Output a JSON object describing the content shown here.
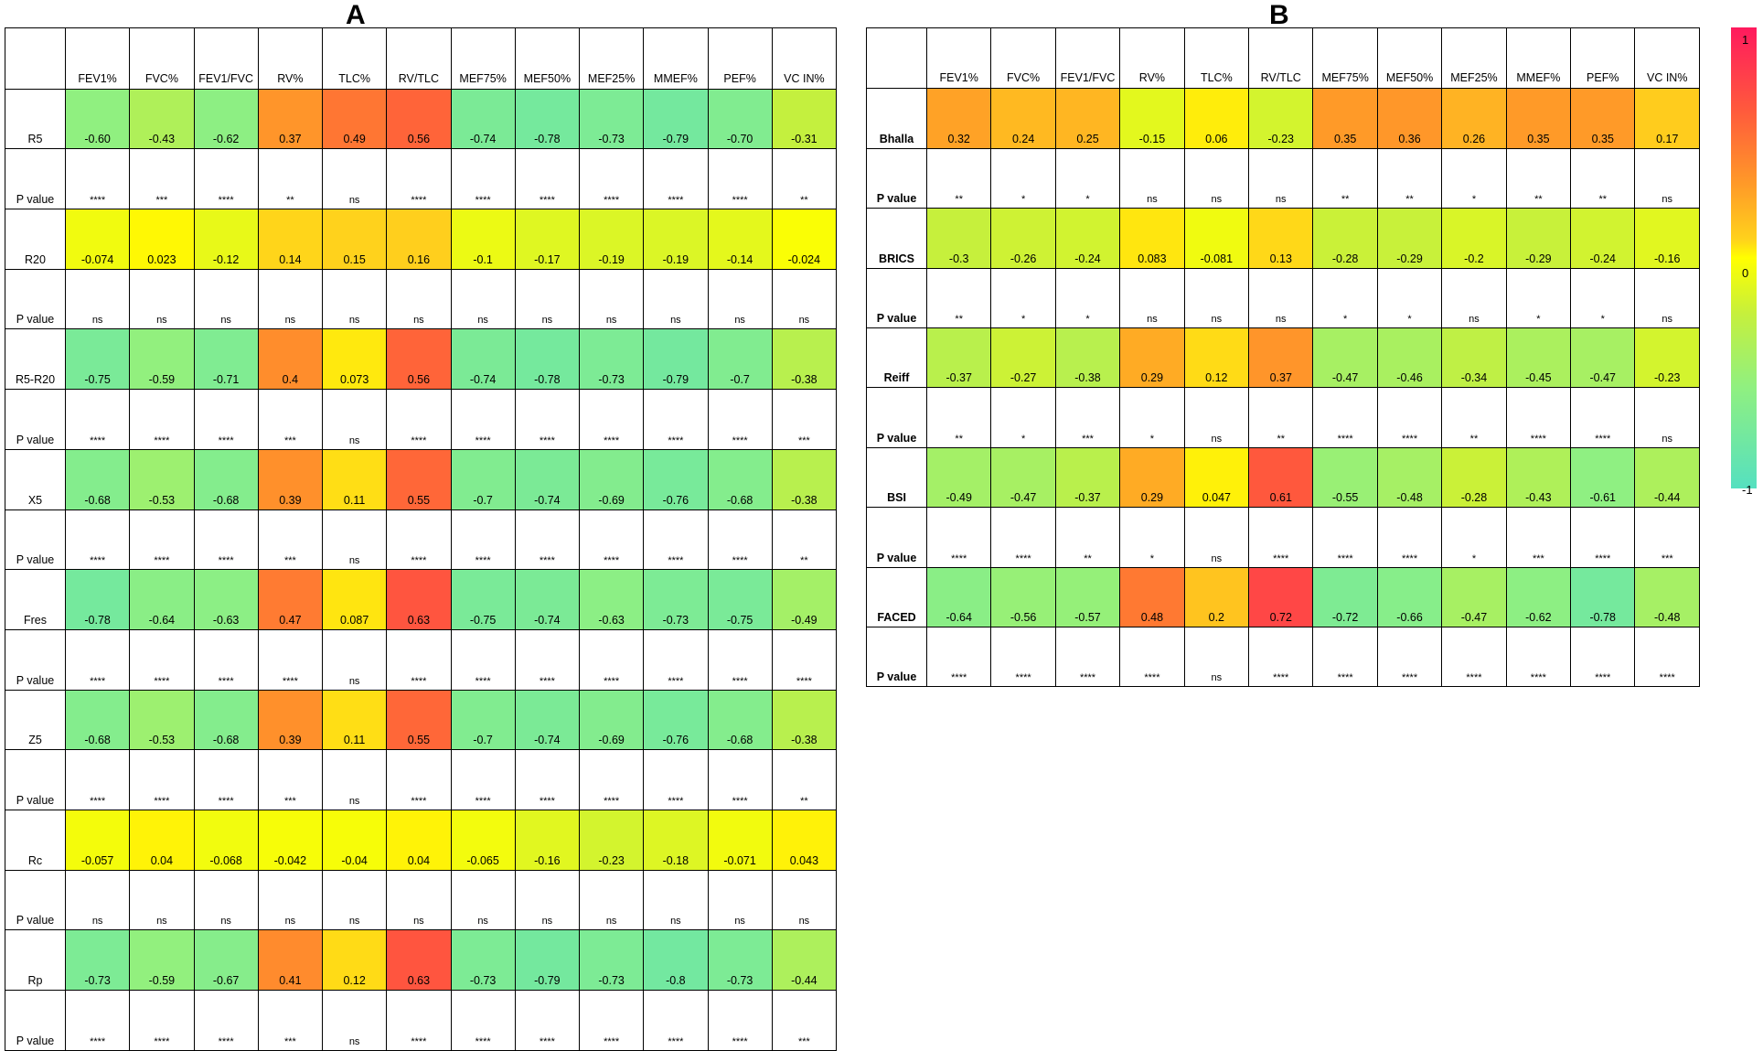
{
  "chart_data": [
    {
      "type": "heatmap",
      "panel": "A",
      "columns": [
        "FEV1%",
        "FVC%",
        "FEV1/FVC",
        "RV%",
        "TLC%",
        "RV/TLC",
        "MEF75%",
        "MEF50%",
        "MEF25%",
        "MMEF%",
        "PEF%",
        "VC IN%"
      ],
      "p_label": "P value",
      "rows": [
        {
          "label": "R5",
          "values": [
            -0.6,
            -0.43,
            -0.62,
            0.37,
            0.49,
            0.56,
            -0.74,
            -0.78,
            -0.73,
            -0.79,
            -0.7,
            -0.31
          ],
          "display": [
            "-0.60",
            "-0.43",
            "-0.62",
            "0.37",
            "0.49",
            "0.56",
            "-0.74",
            "-0.78",
            "-0.73",
            "-0.79",
            "-0.70",
            "-0.31"
          ],
          "p": [
            "****",
            "***",
            "****",
            "**",
            "ns",
            "****",
            "****",
            "****",
            "****",
            "****",
            "****",
            "**"
          ]
        },
        {
          "label": "R20",
          "values": [
            -0.074,
            0.023,
            -0.12,
            0.14,
            0.15,
            0.16,
            -0.1,
            -0.17,
            -0.19,
            -0.19,
            -0.14,
            -0.024
          ],
          "display": [
            "-0.074",
            "0.023",
            "-0.12",
            "0.14",
            "0.15",
            "0.16",
            "-0.1",
            "-0.17",
            "-0.19",
            "-0.19",
            "-0.14",
            "-0.024"
          ],
          "p": [
            "ns",
            "ns",
            "ns",
            "ns",
            "ns",
            "ns",
            "ns",
            "ns",
            "ns",
            "ns",
            "ns",
            "ns"
          ]
        },
        {
          "label": "R5-R20",
          "values": [
            -0.75,
            -0.59,
            -0.71,
            0.4,
            0.073,
            0.56,
            -0.74,
            -0.78,
            -0.73,
            -0.79,
            -0.7,
            -0.38
          ],
          "display": [
            "-0.75",
            "-0.59",
            "-0.71",
            "0.4",
            "0.073",
            "0.56",
            "-0.74",
            "-0.78",
            "-0.73",
            "-0.79",
            "-0.7",
            "-0.38"
          ],
          "p": [
            "****",
            "****",
            "****",
            "***",
            "ns",
            "****",
            "****",
            "****",
            "****",
            "****",
            "****",
            "***"
          ]
        },
        {
          "label": "X5",
          "values": [
            -0.68,
            -0.53,
            -0.68,
            0.39,
            0.11,
            0.55,
            -0.7,
            -0.74,
            -0.69,
            -0.76,
            -0.68,
            -0.38
          ],
          "display": [
            "-0.68",
            "-0.53",
            "-0.68",
            "0.39",
            "0.11",
            "0.55",
            "-0.7",
            "-0.74",
            "-0.69",
            "-0.76",
            "-0.68",
            "-0.38"
          ],
          "p": [
            "****",
            "****",
            "****",
            "***",
            "ns",
            "****",
            "****",
            "****",
            "****",
            "****",
            "****",
            "**"
          ]
        },
        {
          "label": "Fres",
          "values": [
            -0.78,
            -0.64,
            -0.63,
            0.47,
            0.087,
            0.63,
            -0.75,
            -0.74,
            -0.63,
            -0.73,
            -0.75,
            -0.49
          ],
          "display": [
            "-0.78",
            "-0.64",
            "-0.63",
            "0.47",
            "0.087",
            "0.63",
            "-0.75",
            "-0.74",
            "-0.63",
            "-0.73",
            "-0.75",
            "-0.49"
          ],
          "p": [
            "****",
            "****",
            "****",
            "****",
            "ns",
            "****",
            "****",
            "****",
            "****",
            "****",
            "****",
            "****"
          ]
        },
        {
          "label": "Z5",
          "values": [
            -0.68,
            -0.53,
            -0.68,
            0.39,
            0.11,
            0.55,
            -0.7,
            -0.74,
            -0.69,
            -0.76,
            -0.68,
            -0.38
          ],
          "display": [
            "-0.68",
            "-0.53",
            "-0.68",
            "0.39",
            "0.11",
            "0.55",
            "-0.7",
            "-0.74",
            "-0.69",
            "-0.76",
            "-0.68",
            "-0.38"
          ],
          "p": [
            "****",
            "****",
            "****",
            "***",
            "ns",
            "****",
            "****",
            "****",
            "****",
            "****",
            "****",
            "**"
          ]
        },
        {
          "label": "Rc",
          "values": [
            -0.057,
            0.04,
            -0.068,
            -0.042,
            -0.04,
            0.04,
            -0.065,
            -0.16,
            -0.23,
            -0.18,
            -0.071,
            0.043
          ],
          "display": [
            "-0.057",
            "0.04",
            "-0.068",
            "-0.042",
            "-0.04",
            "0.04",
            "-0.065",
            "-0.16",
            "-0.23",
            "-0.18",
            "-0.071",
            "0.043"
          ],
          "p": [
            "ns",
            "ns",
            "ns",
            "ns",
            "ns",
            "ns",
            "ns",
            "ns",
            "ns",
            "ns",
            "ns",
            "ns"
          ]
        },
        {
          "label": "Rp",
          "values": [
            -0.73,
            -0.59,
            -0.67,
            0.41,
            0.12,
            0.63,
            -0.73,
            -0.79,
            -0.73,
            -0.8,
            -0.73,
            -0.44
          ],
          "display": [
            "-0.73",
            "-0.59",
            "-0.67",
            "0.41",
            "0.12",
            "0.63",
            "-0.73",
            "-0.79",
            "-0.73",
            "-0.8",
            "-0.73",
            "-0.44"
          ],
          "p": [
            "****",
            "****",
            "****",
            "***",
            "ns",
            "****",
            "****",
            "****",
            "****",
            "****",
            "****",
            "***"
          ]
        }
      ]
    },
    {
      "type": "heatmap",
      "panel": "B",
      "columns": [
        "FEV1%",
        "FVC%",
        "FEV1/FVC",
        "RV%",
        "TLC%",
        "RV/TLC",
        "MEF75%",
        "MEF50%",
        "MEF25%",
        "MMEF%",
        "PEF%",
        "VC IN%"
      ],
      "p_label": "P value",
      "rows": [
        {
          "label": "Bhalla",
          "values": [
            0.32,
            0.24,
            0.25,
            -0.15,
            0.06,
            -0.23,
            0.35,
            0.36,
            0.26,
            0.35,
            0.35,
            0.17
          ],
          "display": [
            "0.32",
            "0.24",
            "0.25",
            "-0.15",
            "0.06",
            "-0.23",
            "0.35",
            "0.36",
            "0.26",
            "0.35",
            "0.35",
            "0.17"
          ],
          "p": [
            "**",
            "*",
            "*",
            "ns",
            "ns",
            "ns",
            "**",
            "**",
            "*",
            "**",
            "**",
            "ns"
          ]
        },
        {
          "label": "BRICS",
          "values": [
            -0.3,
            -0.26,
            -0.24,
            0.083,
            -0.081,
            0.13,
            -0.28,
            -0.29,
            -0.2,
            -0.29,
            -0.24,
            -0.16
          ],
          "display": [
            "-0.3",
            "-0.26",
            "-0.24",
            "0.083",
            "-0.081",
            "0.13",
            "-0.28",
            "-0.29",
            "-0.2",
            "-0.29",
            "-0.24",
            "-0.16"
          ],
          "p": [
            "**",
            "*",
            "*",
            "ns",
            "ns",
            "ns",
            "*",
            "*",
            "ns",
            "*",
            "*",
            "ns"
          ]
        },
        {
          "label": "Reiff",
          "values": [
            -0.37,
            -0.27,
            -0.38,
            0.29,
            0.12,
            0.37,
            -0.47,
            -0.46,
            -0.34,
            -0.45,
            -0.47,
            -0.23
          ],
          "display": [
            "-0.37",
            "-0.27",
            "-0.38",
            "0.29",
            "0.12",
            "0.37",
            "-0.47",
            "-0.46",
            "-0.34",
            "-0.45",
            "-0.47",
            "-0.23"
          ],
          "p": [
            "**",
            "*",
            "***",
            "*",
            "ns",
            "**",
            "****",
            "****",
            "**",
            "****",
            "****",
            "ns"
          ]
        },
        {
          "label": "BSI",
          "values": [
            -0.49,
            -0.47,
            -0.37,
            0.29,
            0.047,
            0.61,
            -0.55,
            -0.48,
            -0.28,
            -0.43,
            -0.61,
            -0.44
          ],
          "display": [
            "-0.49",
            "-0.47",
            "-0.37",
            "0.29",
            "0.047",
            "0.61",
            "-0.55",
            "-0.48",
            "-0.28",
            "-0.43",
            "-0.61",
            "-0.44"
          ],
          "p": [
            "****",
            "****",
            "**",
            "*",
            "ns",
            "****",
            "****",
            "****",
            "*",
            "***",
            "****",
            "***"
          ]
        },
        {
          "label": "FACED",
          "values": [
            -0.64,
            -0.56,
            -0.57,
            0.48,
            0.2,
            0.72,
            -0.72,
            -0.66,
            -0.47,
            -0.62,
            -0.78,
            -0.48
          ],
          "display": [
            "-0.64",
            "-0.56",
            "-0.57",
            "0.48",
            "0.2",
            "0.72",
            "-0.72",
            "-0.66",
            "-0.47",
            "-0.62",
            "-0.78",
            "-0.48"
          ],
          "p": [
            "****",
            "****",
            "****",
            "****",
            "ns",
            "****",
            "****",
            "****",
            "****",
            "****",
            "****",
            "****"
          ]
        }
      ]
    }
  ],
  "colorbar": {
    "ticks": [
      "1",
      "0",
      "-1"
    ],
    "colors": {
      "high": "#ff1a5e",
      "mid": "#ffff00",
      "low": "#55e0c0"
    }
  }
}
